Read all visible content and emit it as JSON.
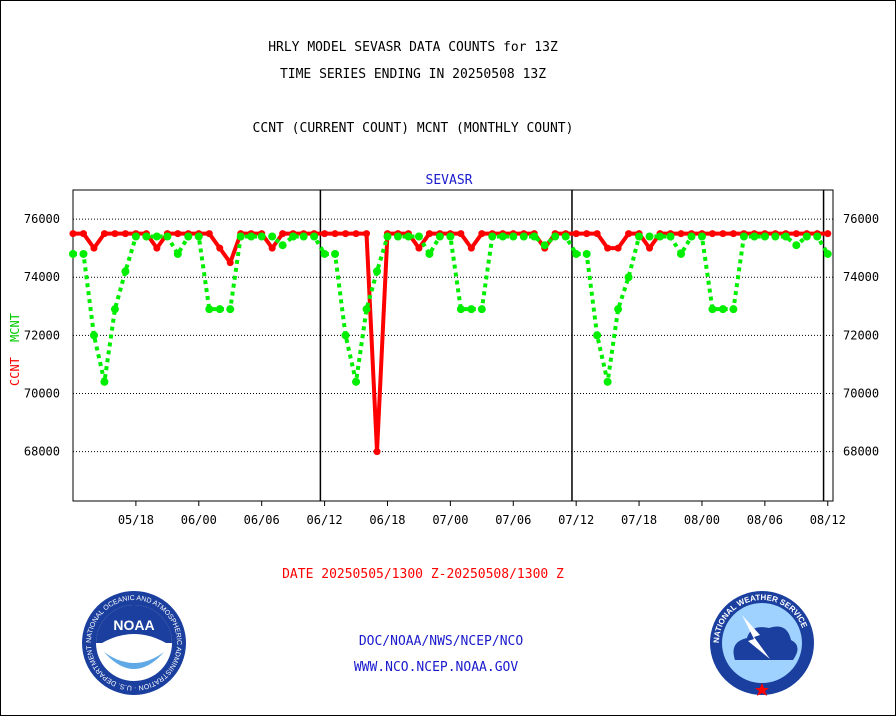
{
  "chart_data": {
    "type": "line",
    "title_lines": [
      "HRLY MODEL SEVASR DATA COUNTS for 13Z",
      "TIME SERIES ENDING IN 20250508 13Z"
    ],
    "subtitle": "CCNT (CURRENT COUNT) MCNT (MONTHLY COUNT)",
    "panel_label": "SEVASR",
    "ylabel_ccnt": "CCNT",
    "ylabel_mcnt": "MCNT",
    "ylim": [
      66300,
      77000
    ],
    "yticks": [
      68000,
      70000,
      72000,
      74000,
      76000
    ],
    "ytick_labels": [
      "68000",
      "70000",
      "72000",
      "74000",
      "76000"
    ],
    "xlim": [
      0,
      72.5
    ],
    "x_ticks": [
      {
        "x": 6,
        "label": "05/18"
      },
      {
        "x": 12,
        "label": "06/00"
      },
      {
        "x": 18,
        "label": "06/06"
      },
      {
        "x": 24,
        "label": "06/12"
      },
      {
        "x": 30,
        "label": "06/18"
      },
      {
        "x": 36,
        "label": "07/00"
      },
      {
        "x": 42,
        "label": "07/06"
      },
      {
        "x": 48,
        "label": "07/12"
      },
      {
        "x": 54,
        "label": "07/18"
      },
      {
        "x": 60,
        "label": "08/00"
      },
      {
        "x": 66,
        "label": "08/06"
      },
      {
        "x": 72,
        "label": "08/12"
      }
    ],
    "day_boundaries": [
      23.6,
      47.6,
      71.6
    ],
    "series": [
      {
        "color": "#ff0000",
        "values": [
          75500,
          75500,
          75000,
          75500,
          75500,
          75500,
          75500,
          75500,
          75000,
          75500,
          75500,
          75500,
          75500,
          75500,
          75000,
          74500,
          75500,
          75500,
          75500,
          75000,
          75500,
          75500,
          75500,
          75500,
          75500,
          75500,
          75500,
          75500,
          75500,
          68000,
          75500,
          75500,
          75500,
          75000,
          75500,
          75500,
          75500,
          75500,
          75000,
          75500,
          75500,
          75500,
          75500,
          75500,
          75500,
          75000,
          75500,
          75500,
          75500,
          75500,
          75500,
          75000,
          75000,
          75500,
          75500,
          75000,
          75500,
          75500,
          75500,
          75500,
          75500,
          75500,
          75500,
          75500,
          75500,
          75500,
          75500,
          75500,
          75500,
          75500,
          75500,
          75500,
          75500
        ]
      },
      {
        "color": "#00ee00",
        "values": [
          74800,
          74800,
          72000,
          70400,
          72900,
          74200,
          75400,
          75400,
          75400,
          75400,
          74800,
          75400,
          75400,
          72900,
          72900,
          72900,
          75400,
          75400,
          75400,
          75400,
          75100,
          75400,
          75400,
          75400,
          74800,
          74800,
          72000,
          70400,
          72900,
          74200,
          75400,
          75400,
          75400,
          75400,
          74800,
          75400,
          75400,
          72900,
          72900,
          72900,
          75400,
          75400,
          75400,
          75400,
          75400,
          75100,
          75400,
          75400,
          74800,
          74800,
          72000,
          70400,
          72900,
          74000,
          75400,
          75400,
          75400,
          75400,
          74800,
          75400,
          75400,
          72900,
          72900,
          72900,
          75400,
          75400,
          75400,
          75400,
          75400,
          75100,
          75400,
          75400,
          74800
        ]
      }
    ]
  },
  "date_label": "DATE 20250505/1300 Z-20250508/1300 Z",
  "footer_line1": "DOC/NOAA/NWS/NCEP/NCO",
  "footer_line2": "WWW.NCO.NCEP.NOAA.GOV",
  "noaa_logo": {
    "text": "NOAA",
    "ring_text": "NATIONAL OCEANIC AND ATMOSPHERIC ADMINISTRATION · U.S. DEPARTMENT OF COMMERCE",
    "colors": {
      "outer": "#1a3f9e",
      "inner": "#5fa9e6",
      "white": "#ffffff"
    }
  },
  "nws_logo": {
    "ring_text": "NATIONAL WEATHER SERVICE",
    "colors": {
      "ring": "#1a3f9e",
      "inner": "#9fd2ff",
      "star": "#ff0000"
    }
  }
}
